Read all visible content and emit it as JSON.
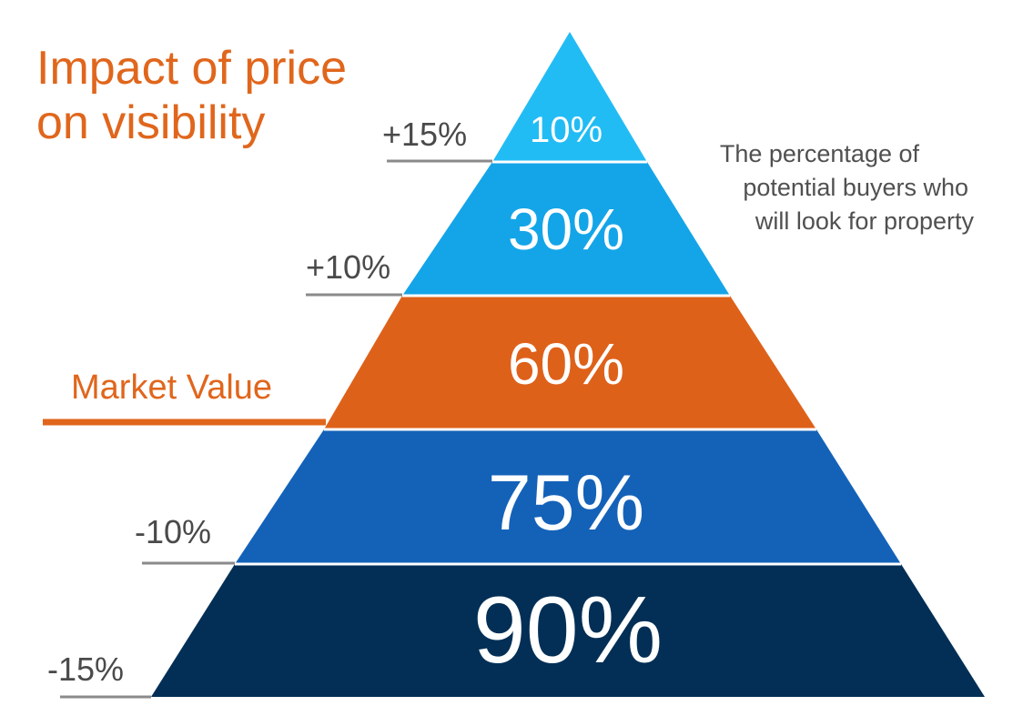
{
  "title": {
    "line1": "Impact of price",
    "line2": "on visibility",
    "color": "#E0661C"
  },
  "description": {
    "line1": "The percentage of",
    "line2": "potential buyers who",
    "line3": "will look for property",
    "color": "#505050"
  },
  "levels": [
    {
      "value": "10%",
      "price_label": "+15%",
      "color": "#22BCF5"
    },
    {
      "value": "30%",
      "price_label": "+10%",
      "color": "#14A5E8"
    },
    {
      "value": "60%",
      "price_label": "Market Value",
      "color": "#DE611A"
    },
    {
      "value": "75%",
      "price_label": "-10%",
      "color": "#1462B8"
    },
    {
      "value": "90%",
      "price_label": "-15%",
      "color": "#032F56"
    }
  ],
  "label_color": "#4a4a4a",
  "line_color": "#8a8a8a",
  "market_value_color": "#E0661C"
}
